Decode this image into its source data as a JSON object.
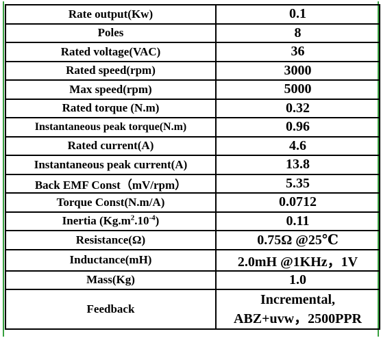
{
  "table": {
    "rows": [
      {
        "param": "Rate output(Kw)",
        "value": "0.1"
      },
      {
        "param": "Poles",
        "value": "8"
      },
      {
        "param": "Rated voltage(VAC)",
        "value": "36"
      },
      {
        "param": "Rated speed(rpm)",
        "value": "3000"
      },
      {
        "param": "Max speed(rpm)",
        "value": "5000"
      },
      {
        "param": "Rated torque (N.m)",
        "value": "0.32"
      },
      {
        "param": "Instantaneous peak torque(N.m)",
        "value": "0.96"
      },
      {
        "param": "Rated current(A)",
        "value": "4.6"
      },
      {
        "param": "Instantaneous peak current(A)",
        "value": "13.8"
      },
      {
        "param": "Back EMF Const（mV/rpm）",
        "value": "5.35"
      },
      {
        "param": "Torque Const(N.m/A)",
        "value": "0.0712"
      },
      {
        "param_prefix": "Inertia (Kg.m",
        "param_sup1": "2",
        "param_mid": ".10",
        "param_sup2": "-4",
        "param_suffix": ")",
        "value": "0.11"
      },
      {
        "param": "Resistance(Ω)",
        "value": "0.75Ω @25℃"
      },
      {
        "param": "Inductance(mH)",
        "value": "2.0mH @1KHz，1V"
      },
      {
        "param": "Mass(Kg)",
        "value": "1.0"
      },
      {
        "param": "Feedback",
        "value_line1": "Incremental,",
        "value_line2": "ABZ+uvw，2500PPR"
      }
    ]
  }
}
